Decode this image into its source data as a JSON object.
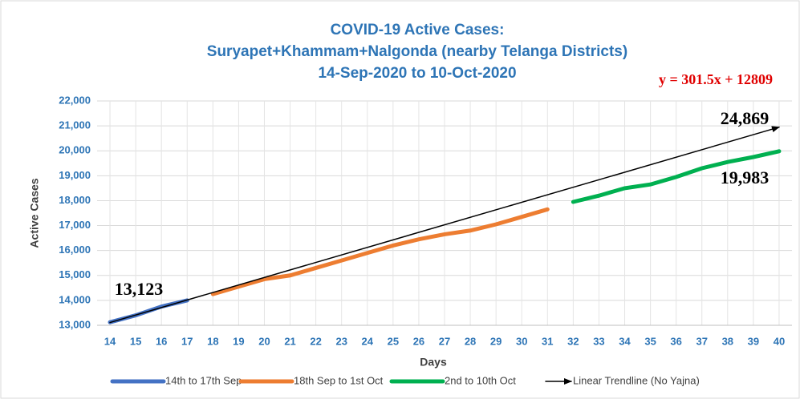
{
  "chart_data": {
    "type": "line",
    "title": [
      "COVID-19 Active Cases:",
      "Suryapet+Khammam+Nalgonda (nearby Telanga Districts)",
      "14-Sep-2020 to 10-Oct-2020"
    ],
    "xlabel": "Days",
    "ylabel": "Active Cases",
    "xlim": [
      13.5,
      40.5
    ],
    "xticks": [
      14,
      15,
      16,
      17,
      18,
      19,
      20,
      21,
      22,
      23,
      24,
      25,
      26,
      27,
      28,
      29,
      30,
      31,
      32,
      33,
      34,
      35,
      36,
      37,
      38,
      39,
      40
    ],
    "ylim": [
      13000,
      22000
    ],
    "yticks": [
      {
        "value": 13000,
        "label": "13,000"
      },
      {
        "value": 14000,
        "label": "14,000"
      },
      {
        "value": 15000,
        "label": "15,000"
      },
      {
        "value": 16000,
        "label": "16,000"
      },
      {
        "value": 17000,
        "label": "17,000"
      },
      {
        "value": 18000,
        "label": "18,000"
      },
      {
        "value": 19000,
        "label": "19,000"
      },
      {
        "value": 20000,
        "label": "20,000"
      },
      {
        "value": 21000,
        "label": "21,000"
      },
      {
        "value": 22000,
        "label": "22,000"
      }
    ],
    "grid": true,
    "legend": "bottom",
    "series": [
      {
        "name": "14th to 17th Sep",
        "color": "#4472c4",
        "x": [
          14,
          15,
          16,
          17
        ],
        "values": [
          13123,
          13400,
          13750,
          14000
        ]
      },
      {
        "name": "18th Sep to 1st Oct",
        "color": "#ed7d31",
        "x": [
          18,
          19,
          20,
          21,
          22,
          23,
          24,
          25,
          26,
          27,
          28,
          29,
          30,
          31
        ],
        "values": [
          14250,
          14550,
          14850,
          15000,
          15300,
          15600,
          15900,
          16200,
          16450,
          16650,
          16800,
          17050,
          17350,
          17650
        ]
      },
      {
        "name": "2nd to 10th Oct",
        "color": "#00b050",
        "x": [
          32,
          33,
          34,
          35,
          36,
          37,
          38,
          39,
          40
        ],
        "values": [
          17950,
          18200,
          18500,
          18650,
          18950,
          19300,
          19550,
          19750,
          19983
        ]
      },
      {
        "name": "Linear Trendline (No Yajna)",
        "color": "#000000",
        "x": [
          14,
          40
        ],
        "values": [
          13110,
          20950
        ]
      }
    ],
    "annotations": [
      "13,123",
      "24,869",
      "19,983",
      "y = 301.5x + 12809"
    ]
  }
}
